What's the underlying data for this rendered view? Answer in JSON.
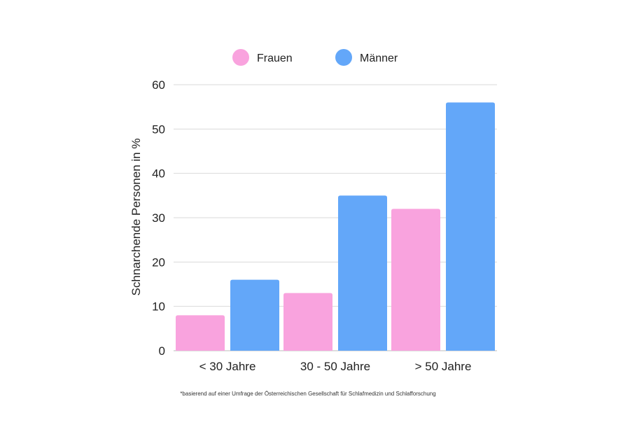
{
  "chart_data": {
    "type": "bar",
    "categories": [
      "< 30 Jahre",
      "30 - 50 Jahre",
      "> 50 Jahre"
    ],
    "series": [
      {
        "name": "Frauen",
        "color": "#F9A3DE",
        "values": [
          8,
          13,
          32
        ]
      },
      {
        "name": "Männer",
        "color": "#63A7F9",
        "values": [
          16,
          35,
          56
        ]
      }
    ],
    "ylabel": "Schnarchende Personen in %",
    "ylim": [
      0,
      60
    ],
    "yticks": [
      0,
      10,
      20,
      30,
      40,
      50,
      60
    ],
    "grid": true,
    "legend_position": "top-center"
  },
  "footnote": "*basierend auf einer Umfrage der Österreichischen Gesellschaft für Schlafmedizin und Schlafforschung"
}
